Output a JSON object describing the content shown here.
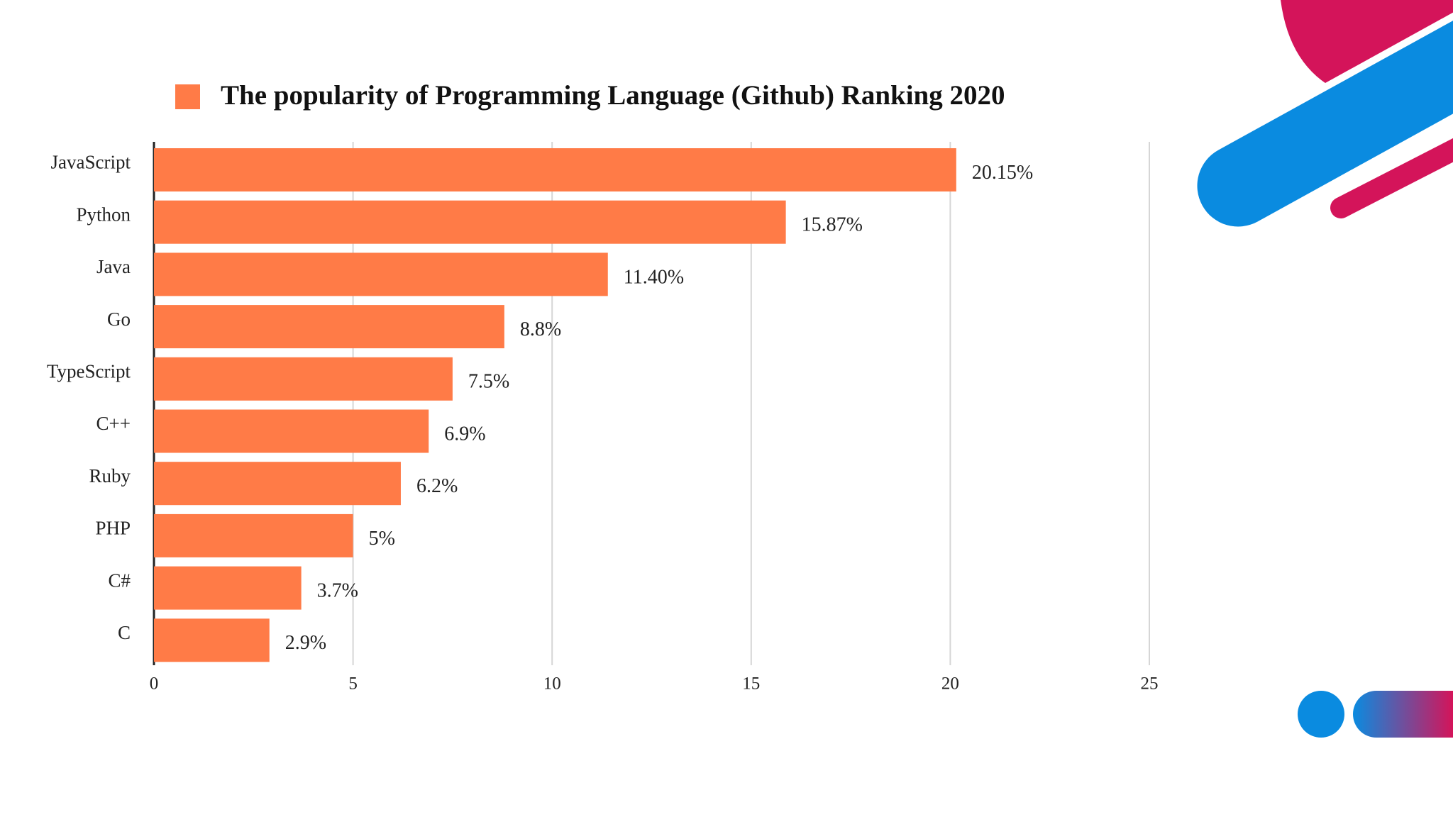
{
  "chart_data": {
    "type": "bar",
    "orientation": "horizontal",
    "categories": [
      "JavaScript",
      "Python",
      "Java",
      "Go",
      "TypeScript",
      "C++",
      "Ruby",
      "PHP",
      "C#",
      "C"
    ],
    "series": [
      {
        "name": "The popularity of Programming Language (Github) Ranking 2020",
        "color": "#ff7b47",
        "values": [
          20.15,
          15.87,
          11.4,
          8.8,
          7.5,
          6.9,
          6.2,
          5,
          3.7,
          2.9
        ],
        "value_labels": [
          "20.15%",
          "15.87%",
          "11.40%",
          "8.8%",
          "7.5%",
          "6.9%",
          "6.2%",
          "5%",
          "3.7%",
          "2.9%"
        ]
      }
    ],
    "xlim": [
      0,
      25
    ],
    "xticks": [
      0,
      5,
      10,
      15,
      20,
      25
    ],
    "grid": true,
    "legend": "top"
  }
}
